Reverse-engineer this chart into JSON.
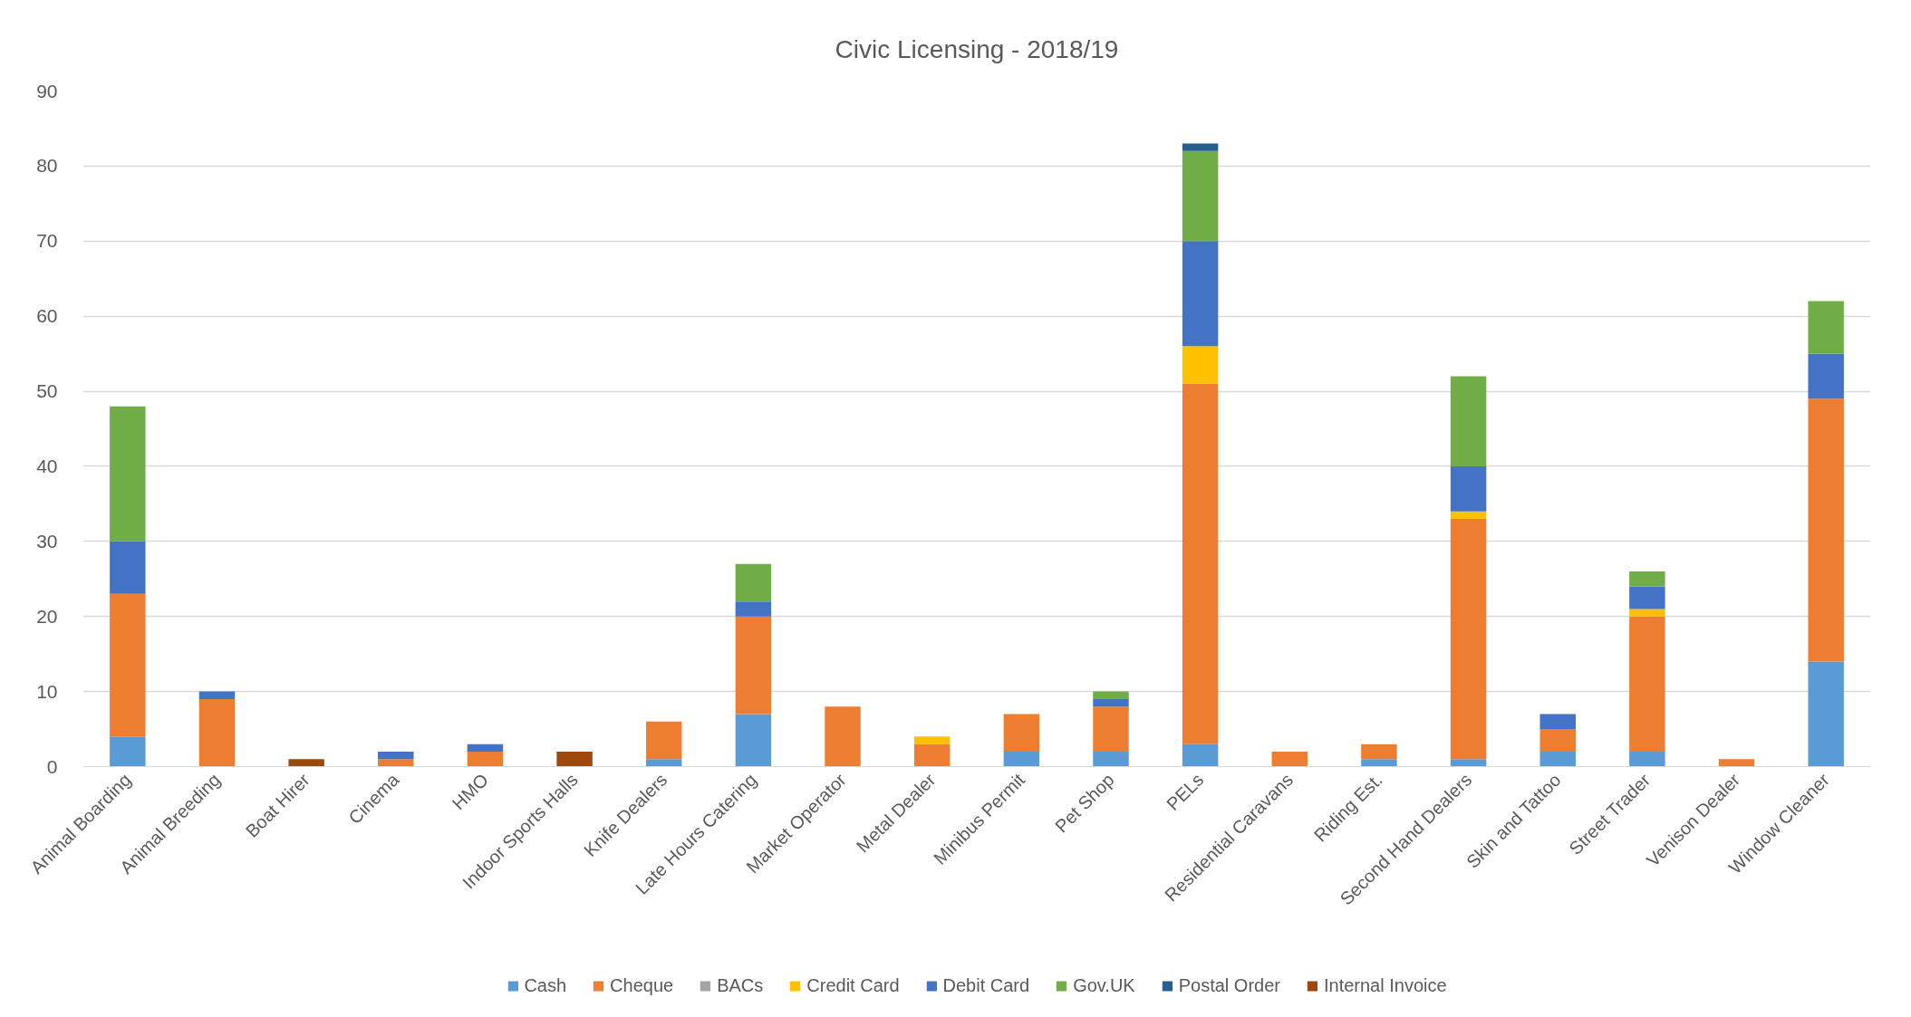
{
  "chart_data": {
    "type": "bar",
    "title": "Civic Licensing - 2018/19",
    "categories": [
      "Animal Boarding",
      "Animal Breeding",
      "Boat Hirer",
      "Cinema",
      "HMO",
      "Indoor Sports Halls",
      "Knife Dealers",
      "Late Hours Catering",
      "Market Operator",
      "Metal Dealer",
      "Minibus Permit",
      "Pet Shop",
      "PELs",
      "Residential Caravans",
      "Riding Est.",
      "Second Hand Dealers",
      "Skin and Tattoo",
      "Street Trader",
      "Venison Dealer",
      "Window Cleaner"
    ],
    "series": [
      {
        "name": "Cash",
        "color": "#5b9bd5",
        "values": [
          4,
          null,
          null,
          null,
          null,
          null,
          1,
          7,
          null,
          null,
          2,
          2,
          3,
          null,
          1,
          1,
          2,
          2,
          null,
          14
        ]
      },
      {
        "name": "Cheque",
        "color": "#ed7d31",
        "values": [
          19,
          9,
          null,
          1,
          2,
          null,
          5,
          13,
          8,
          3,
          5,
          6,
          48,
          2,
          2,
          32,
          3,
          18,
          1,
          35
        ]
      },
      {
        "name": "BACs",
        "color": "#a5a5a5",
        "values": [
          null,
          null,
          null,
          null,
          null,
          null,
          null,
          null,
          null,
          null,
          null,
          null,
          null,
          null,
          null,
          null,
          null,
          null,
          null,
          null
        ]
      },
      {
        "name": "Credit Card",
        "color": "#ffc000",
        "values": [
          null,
          null,
          null,
          null,
          null,
          null,
          null,
          null,
          null,
          1,
          null,
          null,
          5,
          null,
          null,
          1,
          null,
          1,
          null,
          null
        ]
      },
      {
        "name": "Debit Card",
        "color": "#4472c4",
        "values": [
          7,
          1,
          null,
          1,
          1,
          null,
          null,
          2,
          null,
          null,
          null,
          1,
          14,
          null,
          null,
          6,
          2,
          3,
          null,
          6
        ]
      },
      {
        "name": "Gov.UK",
        "color": "#70ad47",
        "values": [
          18,
          null,
          null,
          null,
          null,
          null,
          null,
          5,
          null,
          null,
          null,
          1,
          12,
          null,
          null,
          12,
          null,
          2,
          null,
          7
        ]
      },
      {
        "name": "Postal Order",
        "color": "#255e91",
        "values": [
          null,
          null,
          null,
          null,
          null,
          null,
          null,
          null,
          null,
          null,
          null,
          null,
          1,
          null,
          null,
          null,
          null,
          null,
          null,
          null
        ]
      },
      {
        "name": "Internal Invoice",
        "color": "#9e480e",
        "values": [
          null,
          null,
          1,
          null,
          null,
          2,
          null,
          null,
          null,
          null,
          null,
          null,
          null,
          null,
          null,
          null,
          null,
          null,
          null,
          null
        ]
      }
    ],
    "stacked": true,
    "ylim": [
      0,
      90
    ],
    "yticks": [
      0,
      10,
      20,
      30,
      40,
      50,
      60,
      70,
      80,
      90
    ],
    "grid": "y",
    "legend": "bottom"
  }
}
